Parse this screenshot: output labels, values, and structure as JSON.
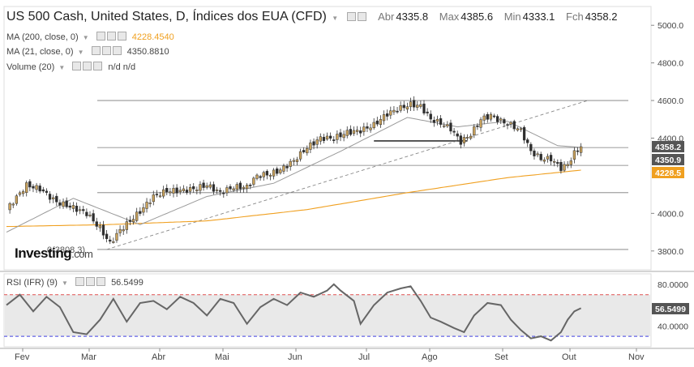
{
  "header": {
    "title": "US 500 Cash, United States, D, Índices dos EUA (CFD)",
    "ohlc": [
      {
        "key": "Abr",
        "value": "4335.8"
      },
      {
        "key": "Max",
        "value": "4385.6"
      },
      {
        "key": "Min",
        "value": "4333.1"
      },
      {
        "key": "Fch",
        "value": "4358.2"
      }
    ]
  },
  "indicators": [
    {
      "label": "MA (200, close, 0)",
      "value": "4228.4540",
      "color": "#f0a020"
    },
    {
      "label": "MA (21, close, 0)",
      "value": "4350.8810",
      "color": "#999999"
    },
    {
      "label": "Volume (20)",
      "value": "n/d n/d",
      "color": "#555555"
    }
  ],
  "rsi_header": {
    "label": "RSI (IFR) (9)",
    "value": "56.5499"
  },
  "brand": {
    "name": "Investing",
    "suffix": ".com"
  },
  "price_annotation": "0(3808.3)",
  "colors": {
    "up": "#c9a25c",
    "down": "#2d2d2d",
    "ma200": "#f0a020",
    "ma21": "#999999",
    "badge": "#555555",
    "rsi": "#666666",
    "upper_band": "#e05050",
    "lower_band": "#4040e0"
  },
  "chart_data": {
    "type": "candlestick",
    "title": "US 500 Cash, United States, D, Índices dos EUA (CFD)",
    "x_labels": [
      "Fev",
      "Mar",
      "Abr",
      "Mai",
      "Jun",
      "Jul",
      "Ago",
      "Set",
      "Out",
      "Nov"
    ],
    "price_ticks": [
      "5000.0",
      "4800.0",
      "4600.0",
      "4400.0",
      "4000.0",
      "3800.0"
    ],
    "ylim": [
      3700,
      5100
    ],
    "price_badges": [
      "4358.2",
      "4350.9",
      "4228.5"
    ],
    "horizontal_levels": [
      4600,
      4350,
      4255,
      4110,
      3808
    ],
    "support_segment": {
      "value": 4385,
      "from_index": 110,
      "to_index": 138
    },
    "trendline": {
      "start_index": 30,
      "start_value": 3808,
      "end_index": 174,
      "end_value": 4600
    },
    "close_path": [
      [
        0,
        4020
      ],
      [
        6,
        4150
      ],
      [
        10,
        4130
      ],
      [
        15,
        4060
      ],
      [
        20,
        4030
      ],
      [
        24,
        4000
      ],
      [
        28,
        3920
      ],
      [
        31,
        3840
      ],
      [
        34,
        3910
      ],
      [
        37,
        3960
      ],
      [
        40,
        4010
      ],
      [
        44,
        4090
      ],
      [
        48,
        4120
      ],
      [
        52,
        4120
      ],
      [
        56,
        4130
      ],
      [
        60,
        4150
      ],
      [
        64,
        4110
      ],
      [
        68,
        4140
      ],
      [
        72,
        4140
      ],
      [
        75,
        4200
      ],
      [
        79,
        4210
      ],
      [
        82,
        4230
      ],
      [
        86,
        4280
      ],
      [
        90,
        4350
      ],
      [
        94,
        4400
      ],
      [
        98,
        4400
      ],
      [
        102,
        4430
      ],
      [
        106,
        4440
      ],
      [
        110,
        4470
      ],
      [
        114,
        4530
      ],
      [
        118,
        4560
      ],
      [
        121,
        4580
      ],
      [
        124,
        4570
      ],
      [
        127,
        4500
      ],
      [
        130,
        4480
      ],
      [
        133,
        4450
      ],
      [
        136,
        4380
      ],
      [
        139,
        4420
      ],
      [
        142,
        4500
      ],
      [
        145,
        4520
      ],
      [
        148,
        4490
      ],
      [
        151,
        4470
      ],
      [
        154,
        4440
      ],
      [
        157,
        4330
      ],
      [
        160,
        4290
      ],
      [
        163,
        4290
      ],
      [
        166,
        4240
      ],
      [
        168,
        4260
      ],
      [
        170,
        4320
      ],
      [
        172,
        4358
      ]
    ],
    "ma200_path": [
      [
        0,
        3930
      ],
      [
        30,
        3940
      ],
      [
        60,
        3960
      ],
      [
        90,
        4020
      ],
      [
        120,
        4110
      ],
      [
        150,
        4190
      ],
      [
        172,
        4230
      ]
    ],
    "ma21_path": [
      [
        0,
        3900
      ],
      [
        20,
        4080
      ],
      [
        40,
        3940
      ],
      [
        60,
        4090
      ],
      [
        80,
        4160
      ],
      [
        100,
        4330
      ],
      [
        120,
        4510
      ],
      [
        135,
        4460
      ],
      [
        150,
        4490
      ],
      [
        165,
        4360
      ],
      [
        172,
        4351
      ]
    ],
    "rsi": {
      "ticks": [
        "80.0000",
        "40.0000"
      ],
      "ylim": [
        20,
        90
      ],
      "upper_band": 70,
      "lower_band": 30,
      "current": "56.5499",
      "path": [
        [
          0,
          60
        ],
        [
          4,
          70
        ],
        [
          8,
          54
        ],
        [
          12,
          68
        ],
        [
          16,
          58
        ],
        [
          20,
          34
        ],
        [
          24,
          32
        ],
        [
          28,
          46
        ],
        [
          32,
          66
        ],
        [
          36,
          44
        ],
        [
          40,
          62
        ],
        [
          44,
          64
        ],
        [
          48,
          56
        ],
        [
          52,
          68
        ],
        [
          56,
          62
        ],
        [
          60,
          50
        ],
        [
          64,
          66
        ],
        [
          68,
          62
        ],
        [
          72,
          42
        ],
        [
          76,
          58
        ],
        [
          80,
          66
        ],
        [
          84,
          60
        ],
        [
          88,
          72
        ],
        [
          92,
          68
        ],
        [
          96,
          74
        ],
        [
          98,
          80
        ],
        [
          100,
          74
        ],
        [
          104,
          64
        ],
        [
          106,
          42
        ],
        [
          110,
          60
        ],
        [
          114,
          72
        ],
        [
          118,
          76
        ],
        [
          121,
          78
        ],
        [
          124,
          64
        ],
        [
          127,
          48
        ],
        [
          130,
          44
        ],
        [
          134,
          38
        ],
        [
          137,
          34
        ],
        [
          140,
          50
        ],
        [
          144,
          62
        ],
        [
          148,
          60
        ],
        [
          151,
          46
        ],
        [
          154,
          36
        ],
        [
          157,
          28
        ],
        [
          160,
          30
        ],
        [
          163,
          26
        ],
        [
          166,
          34
        ],
        [
          168,
          46
        ],
        [
          170,
          54
        ],
        [
          172,
          57
        ]
      ]
    }
  }
}
